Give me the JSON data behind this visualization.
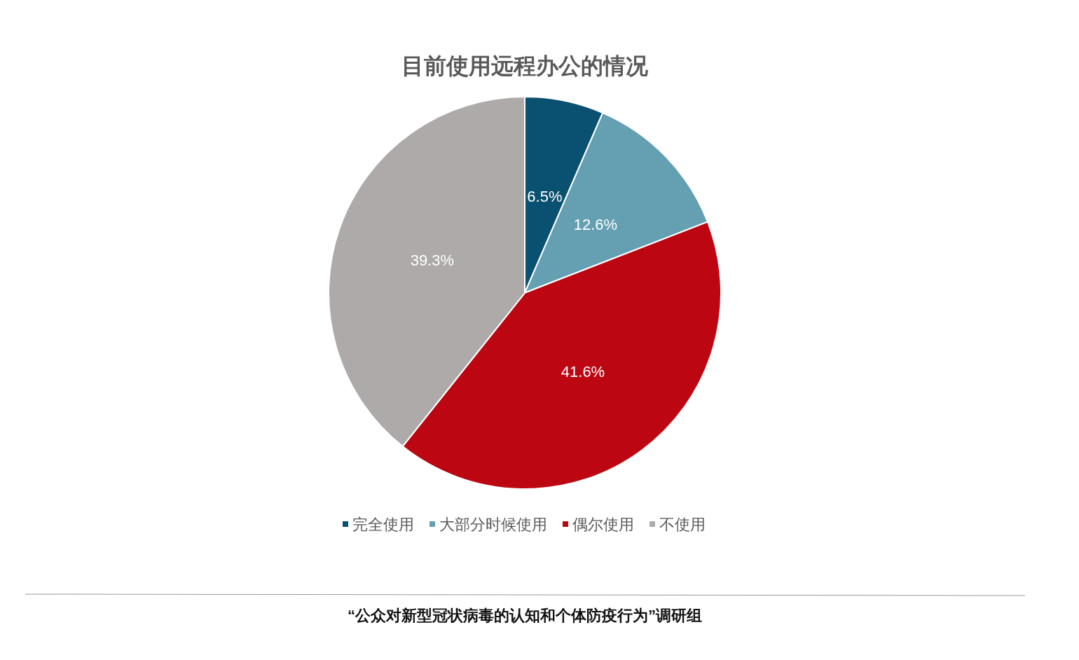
{
  "chart_data": {
    "type": "pie",
    "title": "目前使用远程办公的情况",
    "categories": [
      "完全使用",
      "大部分时候使用",
      "偶尔使用",
      "不使用"
    ],
    "values": [
      6.5,
      12.6,
      41.6,
      39.3
    ],
    "value_labels": [
      "6.5%",
      "12.6%",
      "41.6%",
      "39.3%"
    ],
    "colors": [
      "#0a5070",
      "#649fb2",
      "#bc0712",
      "#aeaaaa"
    ],
    "legend": "bottom",
    "annotations": [
      "“公众对新型冠状病毒的认知和个体防疫行为”调研组"
    ]
  }
}
